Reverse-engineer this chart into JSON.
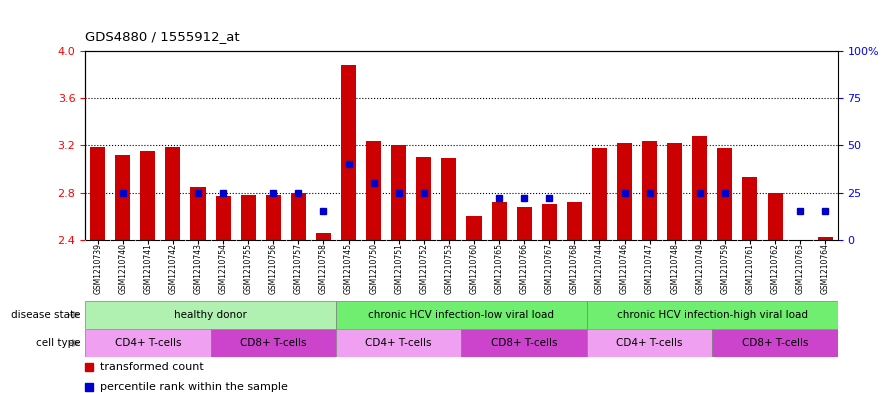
{
  "title": "GDS4880 / 1555912_at",
  "samples": [
    "GSM1210739",
    "GSM1210740",
    "GSM1210741",
    "GSM1210742",
    "GSM1210743",
    "GSM1210754",
    "GSM1210755",
    "GSM1210756",
    "GSM1210757",
    "GSM1210758",
    "GSM1210745",
    "GSM1210750",
    "GSM1210751",
    "GSM1210752",
    "GSM1210753",
    "GSM1210760",
    "GSM1210765",
    "GSM1210766",
    "GSM1210767",
    "GSM1210768",
    "GSM1210744",
    "GSM1210746",
    "GSM1210747",
    "GSM1210748",
    "GSM1210749",
    "GSM1210759",
    "GSM1210761",
    "GSM1210762",
    "GSM1210763",
    "GSM1210764"
  ],
  "transformed_count": [
    3.19,
    3.12,
    3.15,
    3.19,
    2.85,
    2.77,
    2.78,
    2.78,
    2.8,
    2.46,
    3.88,
    3.24,
    3.2,
    3.1,
    3.09,
    2.6,
    2.72,
    2.68,
    2.7,
    2.72,
    3.18,
    3.22,
    3.24,
    3.22,
    3.28,
    3.18,
    2.93,
    2.8,
    2.4,
    2.42
  ],
  "percentile_rank": [
    null,
    25,
    null,
    null,
    25,
    25,
    null,
    25,
    25,
    15,
    40,
    30,
    25,
    25,
    null,
    null,
    22,
    22,
    22,
    null,
    null,
    25,
    25,
    null,
    25,
    25,
    null,
    null,
    15,
    15
  ],
  "disease_state_groups": [
    {
      "label": "healthy donor",
      "start": 0,
      "end": 9,
      "color": "#b0f0b0"
    },
    {
      "label": "chronic HCV infection-low viral load",
      "start": 10,
      "end": 19,
      "color": "#70ee70"
    },
    {
      "label": "chronic HCV infection-high viral load",
      "start": 20,
      "end": 29,
      "color": "#70ee70"
    }
  ],
  "cell_type_groups": [
    {
      "label": "CD4+ T-cells",
      "start": 0,
      "end": 4,
      "color": "#f0a0f0"
    },
    {
      "label": "CD8+ T-cells",
      "start": 5,
      "end": 9,
      "color": "#cc44cc"
    },
    {
      "label": "CD4+ T-cells",
      "start": 10,
      "end": 14,
      "color": "#f0a0f0"
    },
    {
      "label": "CD8+ T-cells",
      "start": 15,
      "end": 19,
      "color": "#cc44cc"
    },
    {
      "label": "CD4+ T-cells",
      "start": 20,
      "end": 24,
      "color": "#f0a0f0"
    },
    {
      "label": "CD8+ T-cells",
      "start": 25,
      "end": 29,
      "color": "#cc44cc"
    }
  ],
  "ylim_left": [
    2.4,
    4.0
  ],
  "ylim_right": [
    0,
    100
  ],
  "yticks_left": [
    2.4,
    2.8,
    3.2,
    3.6,
    4.0
  ],
  "yticks_right": [
    0,
    25,
    50,
    75,
    100
  ],
  "bar_color": "#cc0000",
  "dot_color": "#0000cc",
  "bar_width": 0.6,
  "xticklabel_bg": "#d8d8d8",
  "grid_lines": [
    2.8,
    3.2,
    3.6
  ],
  "legend_items": [
    {
      "color": "#cc0000",
      "label": "transformed count"
    },
    {
      "color": "#0000cc",
      "label": "percentile rank within the sample"
    }
  ]
}
